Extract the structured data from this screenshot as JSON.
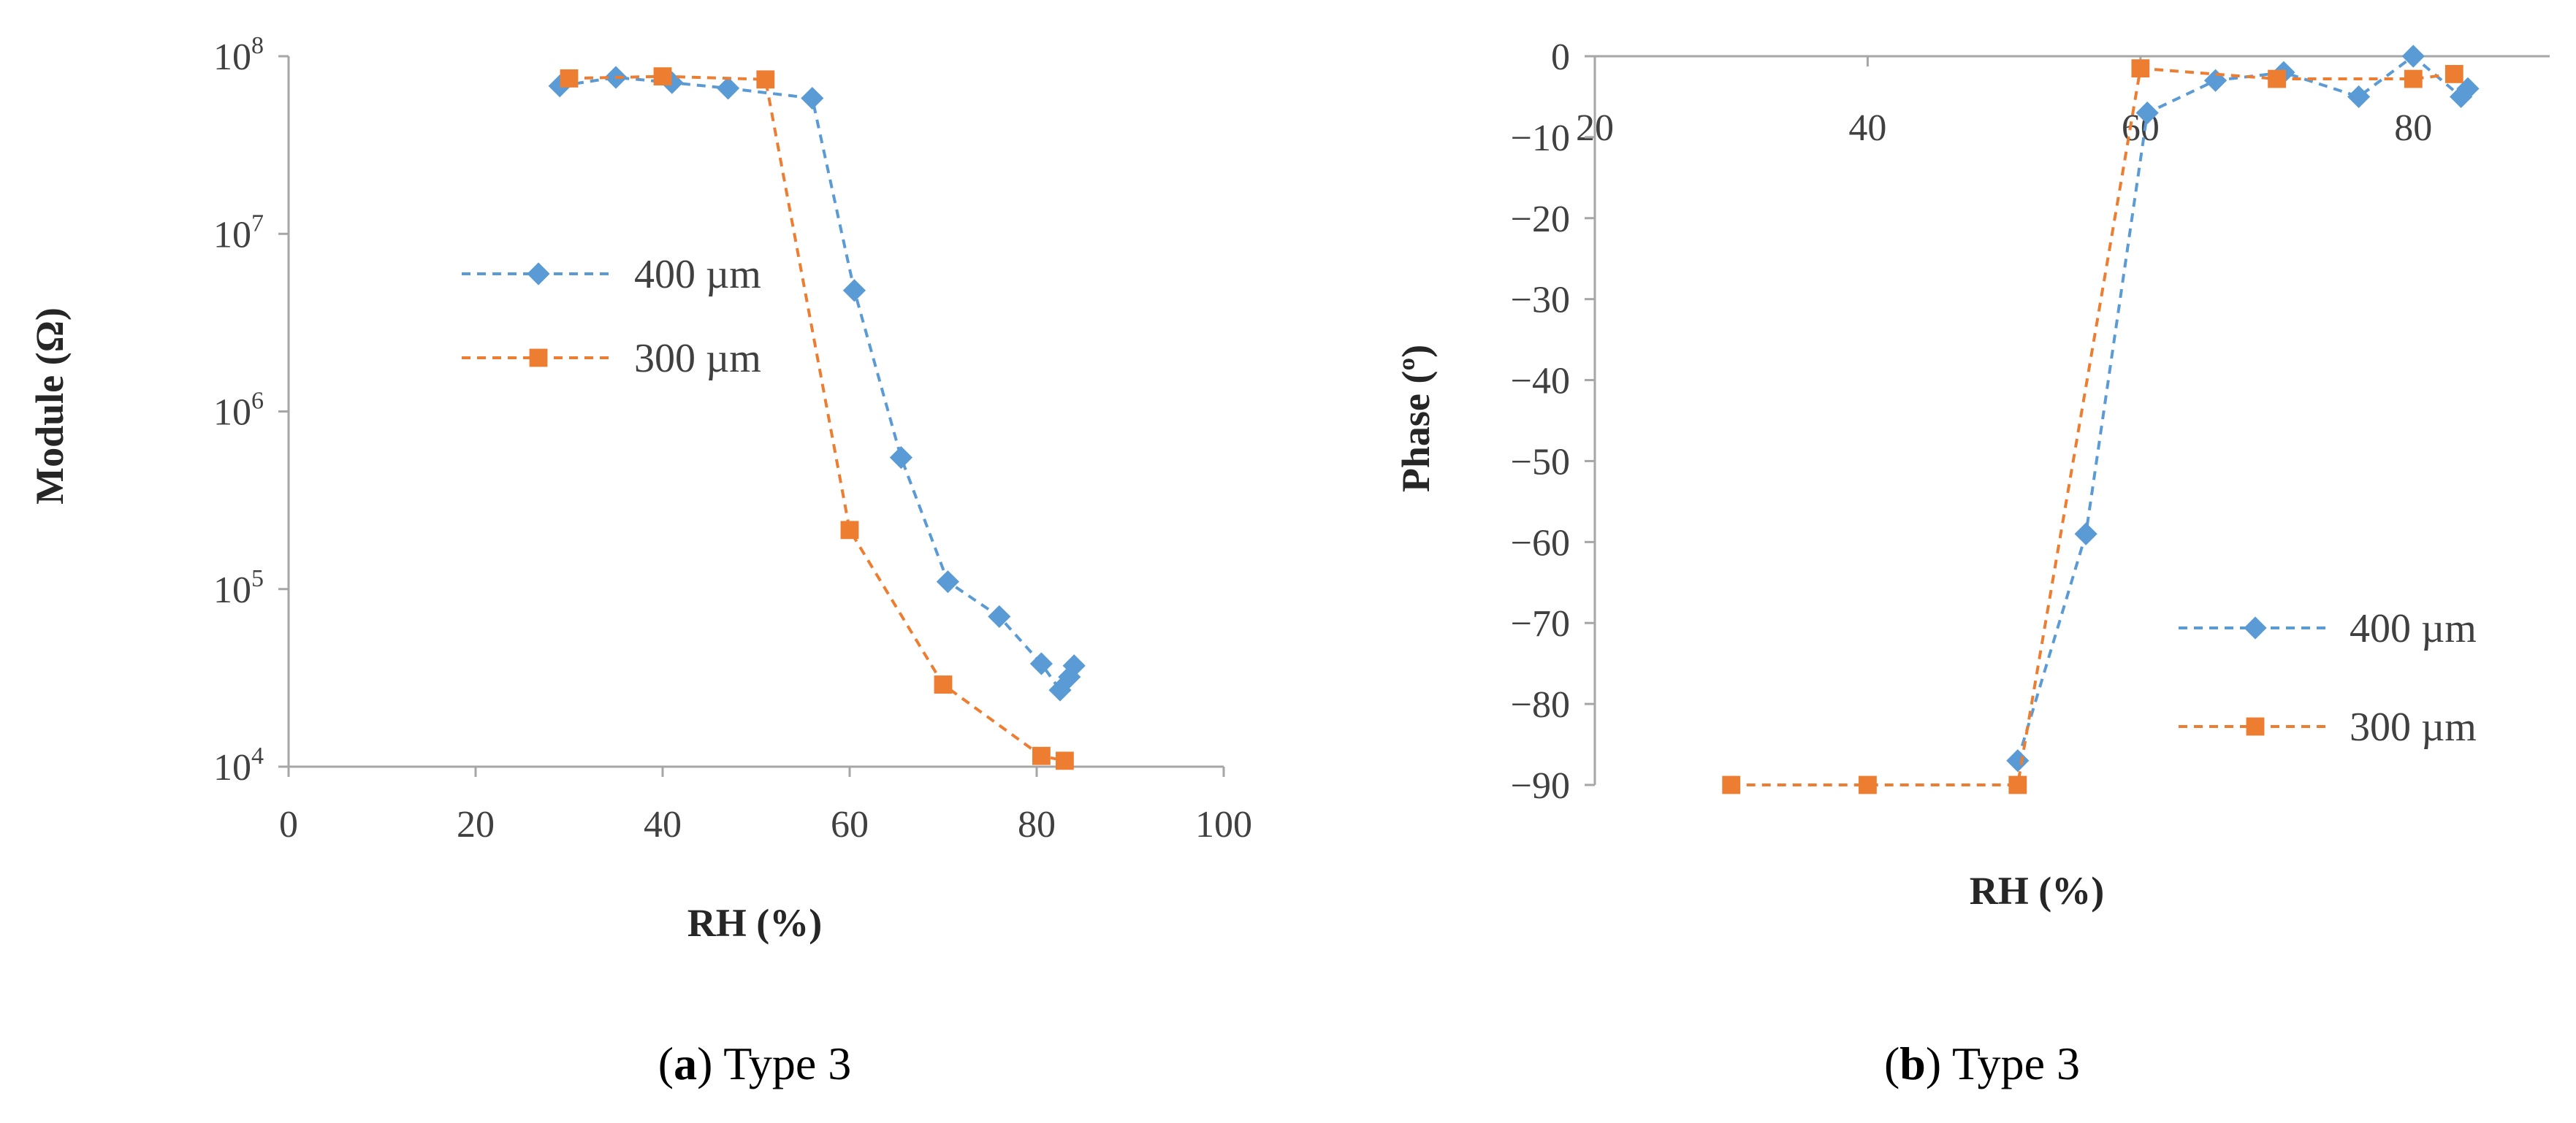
{
  "chart_data": [
    {
      "type": "scatter",
      "panel": "a",
      "caption_letter": "a",
      "caption_text": ") Type 3",
      "xlabel": "RH (%)",
      "ylabel": "Module (Ω)",
      "xlim": [
        0,
        100
      ],
      "xticks": [
        0,
        20,
        40,
        60,
        80,
        100
      ],
      "yscale": "log",
      "ylim": [
        10000,
        100000000
      ],
      "yticks": [
        {
          "value": 10000,
          "base": "10",
          "exp": "4"
        },
        {
          "value": 100000,
          "base": "10",
          "exp": "5"
        },
        {
          "value": 1000000,
          "base": "10",
          "exp": "6"
        },
        {
          "value": 10000000,
          "base": "10",
          "exp": "7"
        },
        {
          "value": 100000000,
          "base": "10",
          "exp": "8"
        }
      ],
      "legend_position": "center-left",
      "series": [
        {
          "name": "400 µm",
          "color": "#5b9bd5",
          "marker": "diamond",
          "x": [
            29,
            35,
            41,
            47,
            56,
            60.5,
            65.5,
            70.5,
            76,
            80.5,
            82.5,
            83.5,
            84
          ],
          "y": [
            68000000,
            76000000,
            71000000,
            66000000,
            58000000,
            4800000,
            550000,
            110000,
            70000,
            38000,
            27000,
            32000,
            37000
          ]
        },
        {
          "name": "300 µm",
          "color": "#ed7d31",
          "marker": "square",
          "x": [
            30,
            40,
            51,
            60,
            70,
            80.5,
            83
          ],
          "y": [
            75000000,
            77000000,
            74000000,
            215000,
            29000,
            11500,
            10800
          ]
        }
      ]
    },
    {
      "type": "scatter",
      "panel": "b",
      "caption_letter": "b",
      "caption_text": ") Type 3",
      "xlabel": "RH (%)",
      "ylabel": "Phase (º)",
      "xlim": [
        20,
        90
      ],
      "xticks": [
        20,
        40,
        60,
        80
      ],
      "ylim": [
        -90,
        0
      ],
      "yticks": [
        0,
        -10,
        -20,
        -30,
        -40,
        -50,
        -60,
        -70,
        -80,
        -90
      ],
      "legend_position": "right",
      "series": [
        {
          "name": "400 µm",
          "color": "#5b9bd5",
          "marker": "diamond",
          "x": [
            51,
            56,
            60.5,
            65.5,
            70.5,
            76,
            80,
            83.5,
            84
          ],
          "y": [
            -87,
            -59,
            -7,
            -3,
            -2,
            -5,
            0,
            -5,
            -4
          ]
        },
        {
          "name": "300 µm",
          "color": "#ed7d31",
          "marker": "square",
          "x": [
            30,
            40,
            51,
            60,
            70,
            80,
            83
          ],
          "y": [
            -90,
            -90,
            -90,
            -1.5,
            -2.8,
            -2.8,
            -2.2
          ]
        }
      ]
    }
  ]
}
